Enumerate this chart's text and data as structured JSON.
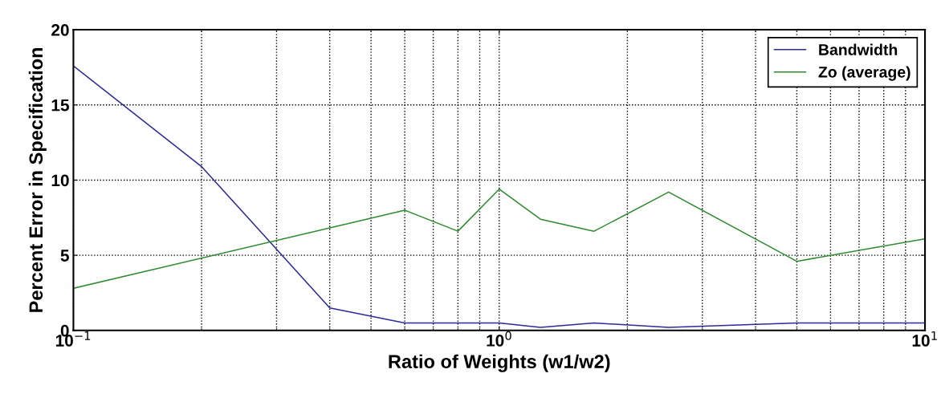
{
  "chart_data": {
    "type": "line",
    "xlabel": "Ratio of Weights (w1/w2)",
    "ylabel": "Percent Error in Specification",
    "log": "x",
    "grid": true,
    "legend": "top right",
    "line_style": "solid",
    "xlim": [
      0.1,
      10
    ],
    "xticks": [
      {
        "value": 0.1,
        "label": "10$^{−1}$"
      },
      {
        "value": 1,
        "label": "10$^{0}$"
      },
      {
        "value": 10,
        "label": "10$^{1}$"
      }
    ],
    "ylim": [
      0,
      20
    ],
    "yticks": [
      0,
      5,
      10,
      15,
      20
    ],
    "series": [
      {
        "name": "Bandwidth",
        "color": "#2b2b9a",
        "x": [
          0.1,
          0.2,
          0.4,
          0.6,
          0.8,
          1,
          1.25,
          1.67,
          2.5,
          5,
          10
        ],
        "values": [
          17.6,
          10.9,
          1.5,
          0.5,
          0.5,
          0.5,
          0.2,
          0.5,
          0.2,
          0.5,
          0.5
        ]
      },
      {
        "name": "Zo (average)",
        "color": "#2e8b2e",
        "x": [
          0.1,
          0.6,
          0.8,
          1,
          1.25,
          1.67,
          2.5,
          5,
          10
        ],
        "values": [
          2.8,
          8.0,
          6.6,
          9.4,
          7.4,
          6.6,
          9.2,
          4.6,
          6.1
        ]
      }
    ]
  }
}
